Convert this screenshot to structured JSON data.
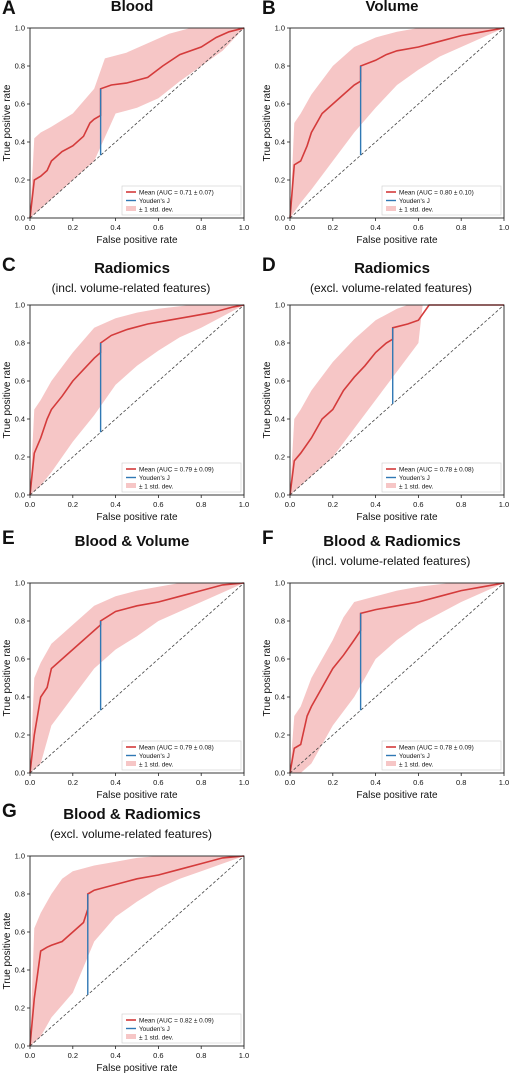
{
  "colors": {
    "mean": "#d43b3b",
    "band": "#f6c6c6",
    "youden": "#2f78b4",
    "chance": "#444444"
  },
  "chart_data": [
    {
      "panel": "A",
      "type": "line",
      "title": "Blood",
      "subtitle": "",
      "xlabel": "False positive rate",
      "ylabel": "True positive rate",
      "xlim": [
        0,
        1
      ],
      "ylim": [
        0,
        1
      ],
      "xticks": [
        "0.0",
        "0.2",
        "0.4",
        "0.6",
        "0.8",
        "1.0"
      ],
      "yticks": [
        "0.0",
        "0.2",
        "0.4",
        "0.6",
        "0.8",
        "1.0"
      ],
      "legend_position": "bottom-right",
      "legend": [
        "Mean (AUC = 0.71 ± 0.07)",
        "Youden's J",
        "± 1 std. dev."
      ],
      "mean_curve": {
        "x": [
          0,
          0.02,
          0.05,
          0.08,
          0.1,
          0.15,
          0.2,
          0.25,
          0.28,
          0.3,
          0.33,
          0.33,
          0.38,
          0.45,
          0.55,
          0.62,
          0.7,
          0.8,
          0.87,
          0.93,
          1.0
        ],
        "y": [
          0,
          0.2,
          0.22,
          0.25,
          0.3,
          0.35,
          0.38,
          0.43,
          0.5,
          0.52,
          0.54,
          0.68,
          0.7,
          0.71,
          0.74,
          0.8,
          0.86,
          0.9,
          0.95,
          0.98,
          1.0
        ]
      },
      "band_upper": {
        "x": [
          0,
          0.02,
          0.05,
          0.1,
          0.2,
          0.3,
          0.35,
          0.45,
          0.55,
          0.65,
          0.75,
          0.85,
          0.9,
          1.0
        ],
        "y": [
          0,
          0.42,
          0.45,
          0.48,
          0.55,
          0.68,
          0.84,
          0.87,
          0.92,
          0.97,
          1.0,
          1.0,
          1.0,
          1.0
        ]
      },
      "band_lower": {
        "x": [
          0,
          0.05,
          0.1,
          0.2,
          0.3,
          0.4,
          0.5,
          0.6,
          0.7,
          0.8,
          0.9,
          1.0
        ],
        "y": [
          0,
          0.05,
          0.1,
          0.2,
          0.3,
          0.55,
          0.58,
          0.63,
          0.72,
          0.8,
          0.88,
          1.0
        ]
      },
      "youden": {
        "x": 0.33,
        "y0": 0.33,
        "y1": 0.68
      }
    },
    {
      "panel": "B",
      "type": "line",
      "title": "Volume",
      "subtitle": "",
      "xlabel": "False positive rate",
      "ylabel": "True positive rate",
      "xlim": [
        0,
        1
      ],
      "ylim": [
        0,
        1
      ],
      "xticks": [
        "0.0",
        "0.2",
        "0.4",
        "0.6",
        "0.8",
        "1.0"
      ],
      "yticks": [
        "0.0",
        "0.2",
        "0.4",
        "0.6",
        "0.8",
        "1.0"
      ],
      "legend_position": "bottom-right",
      "legend": [
        "Mean (AUC = 0.80 ± 0.10)",
        "Youden's J",
        "± 1 std. dev."
      ],
      "mean_curve": {
        "x": [
          0,
          0.02,
          0.05,
          0.08,
          0.1,
          0.15,
          0.2,
          0.25,
          0.3,
          0.33,
          0.33,
          0.4,
          0.45,
          0.5,
          0.6,
          0.7,
          0.8,
          0.9,
          1.0
        ],
        "y": [
          0,
          0.28,
          0.3,
          0.38,
          0.45,
          0.55,
          0.6,
          0.65,
          0.7,
          0.72,
          0.8,
          0.83,
          0.86,
          0.88,
          0.9,
          0.93,
          0.96,
          0.98,
          1.0
        ]
      },
      "band_upper": {
        "x": [
          0,
          0.02,
          0.05,
          0.1,
          0.2,
          0.3,
          0.4,
          0.5,
          0.6,
          0.7,
          0.8,
          1.0
        ],
        "y": [
          0,
          0.5,
          0.55,
          0.65,
          0.8,
          0.9,
          0.95,
          0.98,
          1.0,
          1.0,
          1.0,
          1.0
        ]
      },
      "band_lower": {
        "x": [
          0,
          0.05,
          0.1,
          0.2,
          0.3,
          0.4,
          0.5,
          0.6,
          0.7,
          0.8,
          0.9,
          1.0
        ],
        "y": [
          0,
          0.08,
          0.15,
          0.3,
          0.45,
          0.58,
          0.7,
          0.78,
          0.85,
          0.9,
          0.95,
          1.0
        ]
      },
      "youden": {
        "x": 0.33,
        "y0": 0.33,
        "y1": 0.8
      }
    },
    {
      "panel": "C",
      "type": "line",
      "title": "Radiomics",
      "subtitle": "(incl. volume-related features)",
      "xlabel": "False positive rate",
      "ylabel": "True positive rate",
      "xlim": [
        0,
        1
      ],
      "ylim": [
        0,
        1
      ],
      "xticks": [
        "0.0",
        "0.2",
        "0.4",
        "0.6",
        "0.8",
        "1.0"
      ],
      "yticks": [
        "0.0",
        "0.2",
        "0.4",
        "0.6",
        "0.8",
        "1.0"
      ],
      "legend_position": "bottom-right",
      "legend": [
        "Mean (AUC = 0.79 ± 0.09)",
        "Youden's J",
        "± 1 std. dev."
      ],
      "mean_curve": {
        "x": [
          0,
          0.02,
          0.05,
          0.08,
          0.1,
          0.15,
          0.2,
          0.25,
          0.3,
          0.33,
          0.33,
          0.38,
          0.45,
          0.55,
          0.65,
          0.75,
          0.85,
          0.95,
          1.0
        ],
        "y": [
          0,
          0.22,
          0.3,
          0.4,
          0.45,
          0.52,
          0.6,
          0.66,
          0.72,
          0.75,
          0.8,
          0.84,
          0.87,
          0.9,
          0.92,
          0.94,
          0.96,
          0.99,
          1.0
        ]
      },
      "band_upper": {
        "x": [
          0,
          0.02,
          0.05,
          0.1,
          0.2,
          0.3,
          0.4,
          0.5,
          0.6,
          0.75,
          0.9,
          1.0
        ],
        "y": [
          0,
          0.45,
          0.5,
          0.6,
          0.75,
          0.88,
          0.93,
          0.96,
          0.98,
          1.0,
          1.0,
          1.0
        ]
      },
      "band_lower": {
        "x": [
          0,
          0.05,
          0.1,
          0.2,
          0.3,
          0.4,
          0.5,
          0.6,
          0.7,
          0.8,
          0.9,
          1.0
        ],
        "y": [
          0,
          0.05,
          0.12,
          0.28,
          0.42,
          0.58,
          0.68,
          0.76,
          0.83,
          0.88,
          0.94,
          1.0
        ]
      },
      "youden": {
        "x": 0.33,
        "y0": 0.33,
        "y1": 0.8
      }
    },
    {
      "panel": "D",
      "type": "line",
      "title": "Radiomics",
      "subtitle": "(excl. volume-related features)",
      "xlabel": "False positive rate",
      "ylabel": "True positive rate",
      "xlim": [
        0,
        1
      ],
      "ylim": [
        0,
        1
      ],
      "xticks": [
        "0.0",
        "0.2",
        "0.4",
        "0.6",
        "0.8",
        "1.0"
      ],
      "yticks": [
        "0.0",
        "0.2",
        "0.4",
        "0.6",
        "0.8",
        "1.0"
      ],
      "legend_position": "bottom-right",
      "legend": [
        "Mean (AUC = 0.78 ± 0.08)",
        "Youden's J",
        "± 1 std. dev."
      ],
      "mean_curve": {
        "x": [
          0,
          0.02,
          0.05,
          0.1,
          0.15,
          0.2,
          0.25,
          0.3,
          0.35,
          0.4,
          0.45,
          0.48,
          0.48,
          0.55,
          0.6,
          0.65,
          0.8,
          1.0
        ],
        "y": [
          0,
          0.18,
          0.22,
          0.3,
          0.4,
          0.45,
          0.55,
          0.62,
          0.68,
          0.75,
          0.8,
          0.82,
          0.88,
          0.9,
          0.92,
          1.0,
          1.0,
          1.0
        ]
      },
      "band_upper": {
        "x": [
          0,
          0.02,
          0.05,
          0.1,
          0.2,
          0.3,
          0.4,
          0.5,
          0.55,
          0.6,
          1.0
        ],
        "y": [
          0,
          0.4,
          0.45,
          0.55,
          0.7,
          0.82,
          0.92,
          0.98,
          1.0,
          1.0,
          1.0
        ]
      },
      "band_lower": {
        "x": [
          0,
          0.05,
          0.1,
          0.2,
          0.3,
          0.4,
          0.5,
          0.6,
          0.62,
          0.7,
          1.0
        ],
        "y": [
          0,
          0.05,
          0.1,
          0.2,
          0.35,
          0.5,
          0.65,
          0.8,
          1.0,
          1.0,
          1.0
        ]
      },
      "youden": {
        "x": 0.48,
        "y0": 0.48,
        "y1": 0.88
      }
    },
    {
      "panel": "E",
      "type": "line",
      "title": "Blood & Volume",
      "subtitle": "",
      "xlabel": "False positive rate",
      "ylabel": "True positive rate",
      "xlim": [
        0,
        1
      ],
      "ylim": [
        0,
        1
      ],
      "xticks": [
        "0.0",
        "0.2",
        "0.4",
        "0.6",
        "0.8",
        "1.0"
      ],
      "yticks": [
        "0.0",
        "0.2",
        "0.4",
        "0.6",
        "0.8",
        "1.0"
      ],
      "legend_position": "bottom-right",
      "legend": [
        "Mean (AUC = 0.79 ± 0.08)",
        "Youden's J",
        "± 1 std. dev."
      ],
      "mean_curve": {
        "x": [
          0,
          0.02,
          0.05,
          0.08,
          0.1,
          0.15,
          0.2,
          0.25,
          0.3,
          0.33,
          0.33,
          0.4,
          0.5,
          0.6,
          0.7,
          0.8,
          0.9,
          1.0
        ],
        "y": [
          0,
          0.2,
          0.4,
          0.45,
          0.55,
          0.6,
          0.65,
          0.7,
          0.75,
          0.78,
          0.8,
          0.85,
          0.88,
          0.9,
          0.93,
          0.96,
          0.99,
          1.0
        ]
      },
      "band_upper": {
        "x": [
          0,
          0.02,
          0.05,
          0.1,
          0.2,
          0.3,
          0.4,
          0.5,
          0.6,
          0.7,
          0.85,
          1.0
        ],
        "y": [
          0,
          0.5,
          0.58,
          0.68,
          0.78,
          0.88,
          0.93,
          0.96,
          0.98,
          1.0,
          1.0,
          1.0
        ]
      },
      "band_lower": {
        "x": [
          0,
          0.05,
          0.1,
          0.2,
          0.3,
          0.4,
          0.5,
          0.6,
          0.7,
          0.8,
          0.9,
          1.0
        ],
        "y": [
          0,
          0.05,
          0.25,
          0.4,
          0.55,
          0.65,
          0.72,
          0.8,
          0.85,
          0.9,
          0.95,
          1.0
        ]
      },
      "youden": {
        "x": 0.33,
        "y0": 0.33,
        "y1": 0.8
      }
    },
    {
      "panel": "F",
      "type": "line",
      "title": "Blood & Radiomics",
      "subtitle": "(incl. volume-related features)",
      "xlabel": "False positive rate",
      "ylabel": "True positive rate",
      "xlim": [
        0,
        1
      ],
      "ylim": [
        0,
        1
      ],
      "xticks": [
        "0.0",
        "0.2",
        "0.4",
        "0.6",
        "0.8",
        "1.0"
      ],
      "yticks": [
        "0.0",
        "0.2",
        "0.4",
        "0.6",
        "0.8",
        "1.0"
      ],
      "legend_position": "bottom-right",
      "legend": [
        "Mean (AUC = 0.78 ± 0.09)",
        "Youden's J",
        "± 1 std. dev."
      ],
      "mean_curve": {
        "x": [
          0,
          0.02,
          0.05,
          0.08,
          0.1,
          0.15,
          0.2,
          0.25,
          0.3,
          0.33,
          0.33,
          0.4,
          0.5,
          0.6,
          0.7,
          0.8,
          0.9,
          1.0
        ],
        "y": [
          0,
          0.13,
          0.15,
          0.3,
          0.35,
          0.45,
          0.55,
          0.62,
          0.7,
          0.75,
          0.84,
          0.86,
          0.88,
          0.9,
          0.93,
          0.96,
          0.98,
          1.0
        ]
      },
      "band_upper": {
        "x": [
          0,
          0.02,
          0.05,
          0.1,
          0.2,
          0.25,
          0.3,
          0.4,
          0.5,
          0.6,
          0.75,
          1.0
        ],
        "y": [
          0,
          0.3,
          0.35,
          0.5,
          0.7,
          0.82,
          0.9,
          0.93,
          0.96,
          0.98,
          1.0,
          1.0
        ]
      },
      "band_lower": {
        "x": [
          0,
          0.05,
          0.1,
          0.2,
          0.3,
          0.4,
          0.5,
          0.6,
          0.7,
          0.8,
          0.9,
          1.0
        ],
        "y": [
          0,
          0.0,
          0.05,
          0.25,
          0.4,
          0.6,
          0.7,
          0.78,
          0.84,
          0.9,
          0.95,
          1.0
        ]
      },
      "youden": {
        "x": 0.33,
        "y0": 0.33,
        "y1": 0.84
      }
    },
    {
      "panel": "G",
      "type": "line",
      "title": "Blood & Radiomics",
      "subtitle": "(excl. volume-related features)",
      "xlabel": "False positive rate",
      "ylabel": "True positive rate",
      "xlim": [
        0,
        1
      ],
      "ylim": [
        0,
        1
      ],
      "xticks": [
        "0.0",
        "0.2",
        "0.4",
        "0.6",
        "0.8",
        "1.0"
      ],
      "yticks": [
        "0.0",
        "0.2",
        "0.4",
        "0.6",
        "0.8",
        "1.0"
      ],
      "legend_position": "bottom-right",
      "legend": [
        "Mean (AUC = 0.82 ± 0.09)",
        "Youden's J",
        "± 1 std. dev."
      ],
      "mean_curve": {
        "x": [
          0,
          0.02,
          0.05,
          0.08,
          0.1,
          0.15,
          0.2,
          0.25,
          0.27,
          0.27,
          0.3,
          0.4,
          0.5,
          0.6,
          0.7,
          0.8,
          0.9,
          1.0
        ],
        "y": [
          0,
          0.25,
          0.5,
          0.52,
          0.53,
          0.55,
          0.6,
          0.65,
          0.72,
          0.8,
          0.82,
          0.85,
          0.88,
          0.9,
          0.93,
          0.96,
          0.99,
          1.0
        ]
      },
      "band_upper": {
        "x": [
          0,
          0.02,
          0.05,
          0.1,
          0.15,
          0.2,
          0.3,
          0.4,
          0.5,
          0.6,
          0.7,
          1.0
        ],
        "y": [
          0,
          0.62,
          0.7,
          0.8,
          0.88,
          0.92,
          0.95,
          0.97,
          0.99,
          1.0,
          1.0,
          1.0
        ]
      },
      "band_lower": {
        "x": [
          0,
          0.05,
          0.1,
          0.2,
          0.3,
          0.4,
          0.5,
          0.6,
          0.7,
          0.8,
          0.9,
          1.0
        ],
        "y": [
          0,
          0.05,
          0.15,
          0.28,
          0.55,
          0.68,
          0.76,
          0.83,
          0.88,
          0.92,
          0.96,
          1.0
        ]
      },
      "youden": {
        "x": 0.27,
        "y0": 0.27,
        "y1": 0.8
      }
    }
  ]
}
